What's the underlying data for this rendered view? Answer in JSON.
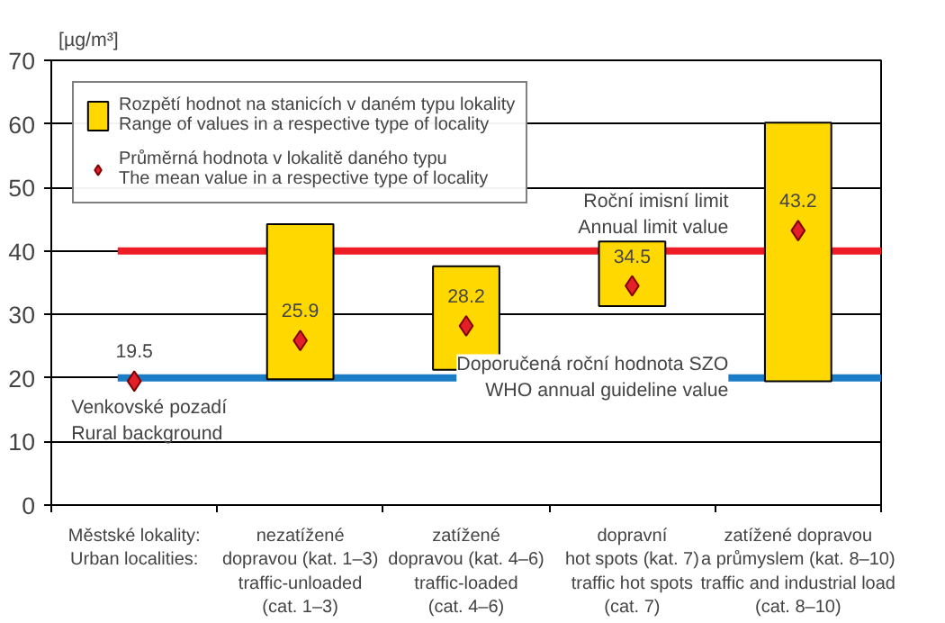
{
  "chart_data": {
    "type": "bar",
    "ylabel": "[µg/m³]",
    "xlabel": "Městské lokality:\nUrban localities:",
    "categories": [
      null,
      "nezatížené\ndopravou (kat. 1–3)\ntraffic-unloaded\n(cat. 1–3)",
      "zatížené\ndopravou (kat. 4–6)\ntraffic-loaded\n(cat. 4–6)",
      "dopravní\nhot spots (kat. 7)\ntraffic hot spots\n(cat. 7)",
      "zatížené dopravou\na průmyslem (kat. 8–10)\ntraffic and industrial load\n(cat. 8–10)"
    ],
    "series": [
      {
        "name": "Rozpětí hodnot na stanicích v daném typu lokality\nRange of values in a respective type of locality",
        "color": "#ffd800",
        "base": [
          null,
          19.8,
          21.3,
          31.3,
          19.5
        ],
        "values": [
          null,
          24.4,
          16.3,
          10.2,
          40.7
        ]
      },
      {
        "name": "Průměrná hodnota v lokalitě daného typu\nThe mean value in a respective type of locality",
        "type": "scatter",
        "marker": "diamond",
        "color": "#e3202a",
        "values": [
          19.5,
          25.9,
          28.2,
          34.5,
          43.2
        ],
        "value_labels": [
          "19.5",
          "25.9",
          "28.2",
          "34.5",
          "43.2"
        ]
      }
    ],
    "ylim": [
      0,
      70
    ],
    "yticks": [
      0,
      10,
      20,
      30,
      40,
      50,
      60,
      70
    ],
    "grid": "y",
    "legend": "top left",
    "ref_lines": [
      {
        "axis": "y",
        "value": 40,
        "label": "Roční imisní limit\nAnnual limit value",
        "color": "#ee1c25"
      },
      {
        "axis": "y",
        "value": 20,
        "label": "Doporučená roční hodnota SZO\nWHO annual guideline value",
        "color": "#1a7dc6"
      }
    ],
    "annotations": [
      "Venkovské pozadí\nRural background"
    ]
  }
}
